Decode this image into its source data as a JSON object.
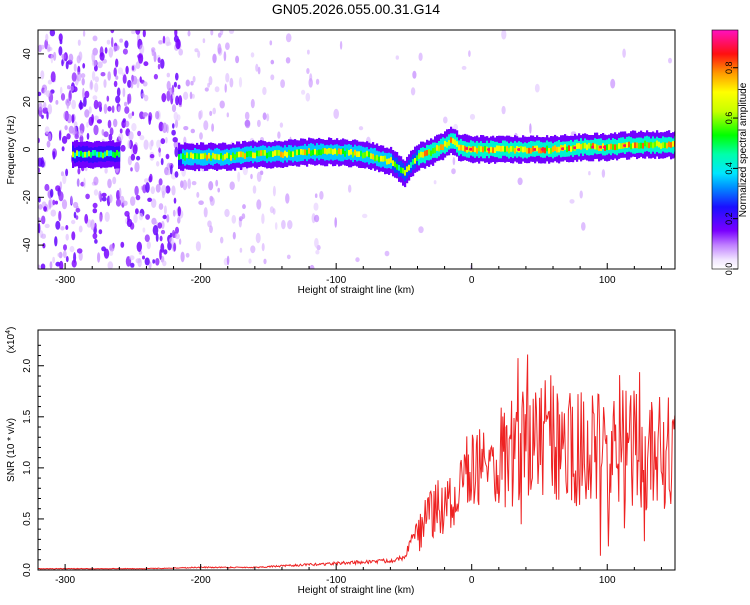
{
  "title": "GN05.2026.055.00.31.G14",
  "chart_data": [
    {
      "type": "heatmap",
      "xlabel": "Height of straight line (km)",
      "ylabel": "Frequency (Hz)",
      "xlim": [
        -320,
        150
      ],
      "ylim": [
        -50,
        50
      ],
      "x_ticks": [
        -300,
        -200,
        -100,
        0,
        100
      ],
      "y_ticks": [
        -40,
        -20,
        0,
        20,
        40
      ],
      "colorbar": {
        "label": "Normalized spectral amplitude",
        "range": [
          0,
          0.95
        ],
        "ticks": [
          0.0,
          0.2,
          0.4,
          0.6,
          0.8
        ]
      },
      "ridge": {
        "x": [
          -300,
          -280,
          -260,
          -240,
          -220,
          -200,
          -180,
          -160,
          -140,
          -120,
          -100,
          -80,
          -60,
          -50,
          -45,
          -40,
          -30,
          -20,
          -15,
          -10,
          0,
          20,
          40,
          60,
          80,
          100,
          120,
          150
        ],
        "y": [
          -2,
          -2,
          -2,
          -3,
          -3,
          -3,
          -3,
          -2,
          -2,
          -1,
          -1,
          -2,
          -5,
          -10,
          -6,
          -3,
          -1,
          2,
          4,
          1,
          0,
          0,
          0,
          0,
          1,
          1,
          2,
          2
        ]
      }
    },
    {
      "type": "line",
      "xlabel": "Height of straight line (km)",
      "ylabel": "SNR (10 * v/v)",
      "y_multiplier": "(x10^4)",
      "y_multiplier_base": "(x10",
      "y_multiplier_exp": "4",
      "xlim": [
        -320,
        150
      ],
      "ylim": [
        0,
        2.35
      ],
      "x_ticks": [
        -300,
        -200,
        -100,
        0,
        100
      ],
      "y_ticks": [
        "0.0",
        "0.5",
        "1.0",
        "1.5",
        "2.0"
      ],
      "series": [
        {
          "color": "#ee2222",
          "x": [
            -320,
            -280,
            -240,
            -200,
            -160,
            -120,
            -100,
            -80,
            -60,
            -50,
            -45,
            -40,
            -35,
            -30,
            -20,
            -10,
            0,
            10,
            20,
            30,
            40,
            50,
            60,
            70,
            80,
            90,
            100,
            110,
            120,
            130,
            140,
            150
          ],
          "y": [
            0.01,
            0.01,
            0.01,
            0.02,
            0.02,
            0.04,
            0.05,
            0.06,
            0.07,
            0.1,
            0.2,
            0.35,
            0.5,
            0.6,
            0.7,
            0.9,
            1.0,
            1.1,
            1.2,
            1.3,
            1.35,
            1.4,
            1.35,
            1.35,
            1.3,
            1.3,
            1.25,
            1.3,
            1.3,
            1.25,
            1.3,
            1.2
          ]
        }
      ]
    }
  ]
}
